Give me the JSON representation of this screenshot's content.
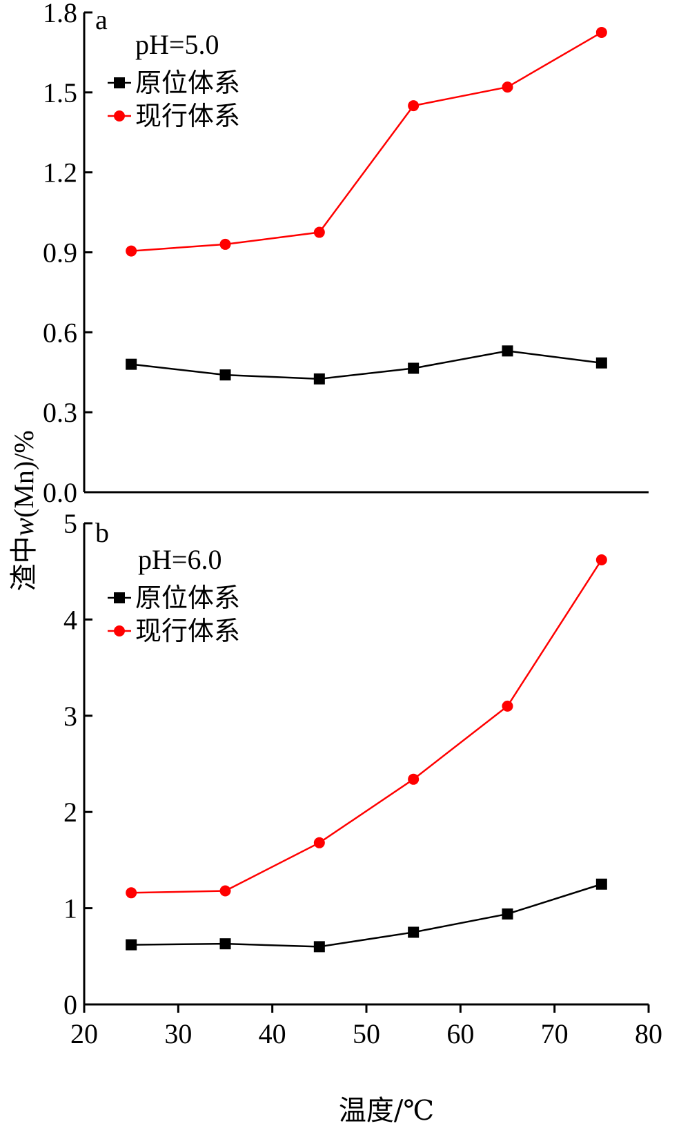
{
  "chart_data": {
    "type": "line",
    "x_label": "温度/℃",
    "y_label_prefix": "渣中",
    "y_label_var": "w",
    "y_label_suffix": "(Mn)/%",
    "x": [
      25,
      35,
      45,
      55,
      65,
      75
    ],
    "xlim": [
      20,
      80
    ],
    "x_ticks": [
      "20",
      "30",
      "40",
      "50",
      "60",
      "70",
      "80"
    ],
    "panels": [
      {
        "label": "a",
        "condition": "pH=5.0",
        "ylim": [
          0,
          1.8
        ],
        "y_ticks": [
          "0.0",
          "0.3",
          "0.6",
          "0.9",
          "1.2",
          "1.5",
          "1.8"
        ],
        "series": [
          {
            "name": "原位体系",
            "marker": "square",
            "color": "#000000",
            "values": [
              0.48,
              0.44,
              0.425,
              0.465,
              0.53,
              0.485
            ]
          },
          {
            "name": "现行体系",
            "marker": "circle",
            "color": "#ff0000",
            "values": [
              0.905,
              0.93,
              0.975,
              1.45,
              1.52,
              1.725
            ]
          }
        ]
      },
      {
        "label": "b",
        "condition": "pH=6.0",
        "ylim": [
          0,
          5
        ],
        "y_ticks": [
          "0",
          "1",
          "2",
          "3",
          "4",
          "5"
        ],
        "series": [
          {
            "name": "原位体系",
            "marker": "square",
            "color": "#000000",
            "values": [
              0.62,
              0.63,
              0.6,
              0.75,
              0.94,
              1.25
            ]
          },
          {
            "name": "现行体系",
            "marker": "circle",
            "color": "#ff0000",
            "values": [
              1.16,
              1.18,
              1.68,
              2.34,
              3.1,
              4.62
            ]
          }
        ]
      }
    ]
  }
}
